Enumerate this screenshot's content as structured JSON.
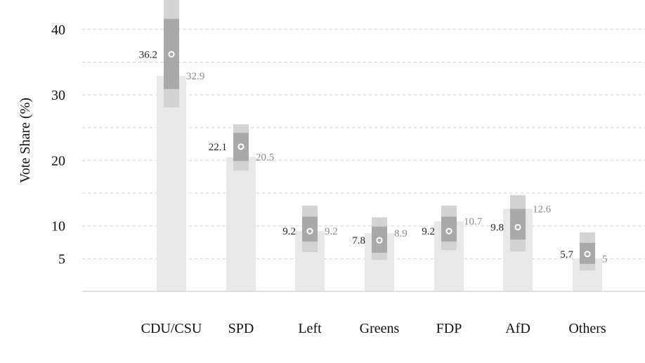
{
  "chart_data": {
    "type": "bar",
    "ylabel": "Vote Share (%)",
    "yticks": [
      5,
      10,
      20,
      30,
      40
    ],
    "ylim": [
      0,
      45
    ],
    "grid": true,
    "categories": [
      "CDU/CSU",
      "SPD",
      "Left",
      "Greens",
      "FDP",
      "AfD",
      "Others"
    ],
    "results": [
      32.9,
      20.5,
      9.2,
      8.9,
      10.7,
      12.6,
      5
    ],
    "estimates": [
      36.2,
      22.1,
      9.2,
      7.8,
      9.2,
      9.8,
      5.7
    ],
    "interval_inner": [
      [
        30.9,
        41.6
      ],
      [
        19.9,
        24.2
      ],
      [
        7.6,
        11.4
      ],
      [
        5.9,
        9.9
      ],
      [
        7.6,
        11.4
      ],
      [
        7.9,
        12.6
      ],
      [
        4.2,
        7.4
      ]
    ],
    "interval_outer": [
      [
        28.1,
        45.0
      ],
      [
        18.4,
        25.5
      ],
      [
        6.0,
        13.1
      ],
      [
        4.8,
        11.3
      ],
      [
        6.3,
        13.1
      ],
      [
        6.1,
        14.7
      ],
      [
        3.2,
        9.0
      ]
    ],
    "colors": {
      "result_bar": "#e8e8e8",
      "outer_interval": "#d3d3d3",
      "inner_interval": "#a9a9a9",
      "marker": "#ffffff",
      "grid": "#d0d0d0",
      "axis": "#d6d6d6"
    }
  }
}
